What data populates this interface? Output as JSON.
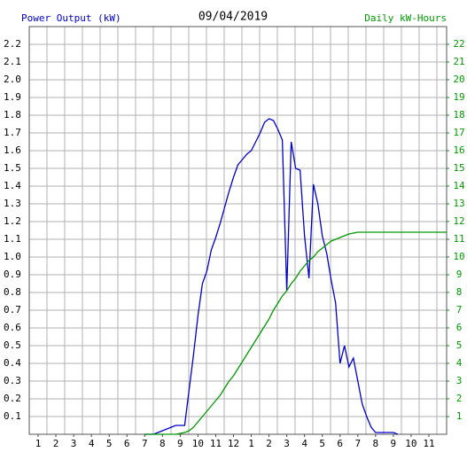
{
  "chart_data": {
    "type": "line",
    "title": "09/04/2019",
    "ylabel": "Power Output (kW)",
    "y2label": "Daily kW-Hours",
    "x": [
      7,
      7.25,
      7.5,
      7.75,
      8,
      8.25,
      8.5,
      8.75,
      9,
      9.25,
      9.5,
      9.75,
      10,
      10.25,
      10.5,
      10.75,
      11,
      11.25,
      11.5,
      11.75,
      12,
      12.25,
      12.5,
      12.75,
      13,
      13.25,
      13.5,
      13.75,
      14,
      14.25,
      14.5,
      14.75,
      15,
      15.25,
      15.5,
      15.75,
      16,
      16.25,
      16.5,
      16.75,
      17,
      17.25,
      17.5,
      17.75,
      18,
      18.25,
      18.5,
      18.75,
      19,
      19.25,
      19.5,
      19.75,
      20,
      20.25,
      20.5,
      20.75,
      21,
      21.25,
      21.5,
      21.75,
      22,
      22.25,
      22.5,
      22.75,
      23,
      23.25,
      23.5,
      23.75,
      24
    ],
    "series": [
      {
        "name": "Power Output (kW)",
        "color": "#0000cc",
        "axis": "y",
        "values": [
          0,
          0,
          0,
          0.01,
          0.02,
          0.03,
          0.04,
          0.05,
          0.05,
          0.05,
          0.25,
          0.45,
          0.67,
          0.85,
          0.92,
          1.04,
          1.11,
          1.19,
          1.28,
          1.37,
          1.45,
          1.52,
          1.55,
          1.58,
          1.6,
          1.65,
          1.7,
          1.76,
          1.78,
          1.77,
          1.72,
          1.66,
          0.81,
          1.65,
          1.5,
          1.49,
          1.12,
          0.88,
          1.41,
          1.3,
          1.12,
          1.02,
          0.87,
          0.74,
          0.4,
          0.5,
          0.38,
          0.43,
          0.3,
          0.17,
          0.1,
          0.04,
          0.01,
          0.01,
          0.01,
          0.01,
          0.01,
          0,
          null,
          null,
          null,
          null,
          null,
          null,
          null,
          null,
          null,
          null,
          null
        ]
      },
      {
        "name": "Daily kW-Hours",
        "color": "#009900",
        "axis": "y2",
        "values": [
          0,
          0,
          0,
          0,
          0,
          0,
          0,
          0,
          0.05,
          0.1,
          0.2,
          0.4,
          0.7,
          1.0,
          1.3,
          1.6,
          1.9,
          2.2,
          2.6,
          3.0,
          3.3,
          3.7,
          4.1,
          4.5,
          4.9,
          5.3,
          5.7,
          6.1,
          6.5,
          7.0,
          7.4,
          7.8,
          8.1,
          8.5,
          8.8,
          9.2,
          9.5,
          9.8,
          10.0,
          10.3,
          10.5,
          10.7,
          10.9,
          11.0,
          11.1,
          11.2,
          11.3,
          11.35,
          11.4,
          11.4,
          11.4,
          11.4,
          11.4,
          11.4,
          11.4,
          11.4,
          11.4,
          11.4,
          11.4,
          11.4,
          11.4,
          11.4,
          11.4,
          11.4,
          11.4,
          11.4,
          11.4,
          11.4,
          11.4
        ]
      }
    ],
    "xlim": [
      0.5,
      24
    ],
    "xticks": [
      1,
      2,
      3,
      4,
      5,
      6,
      7,
      8,
      9,
      10,
      11,
      12,
      {
        "value": 13,
        "label": "1"
      },
      {
        "value": 14,
        "label": "2"
      },
      {
        "value": 15,
        "label": "3"
      },
      {
        "value": 16,
        "label": "4"
      },
      {
        "value": 17,
        "label": "5"
      },
      {
        "value": 18,
        "label": "6"
      },
      {
        "value": 19,
        "label": "7"
      },
      {
        "value": 20,
        "label": "8"
      },
      {
        "value": 21,
        "label": "9"
      },
      {
        "value": 22,
        "label": "10"
      },
      {
        "value": 23,
        "label": "11"
      }
    ],
    "ylim": [
      0,
      2.3
    ],
    "yticks": [
      0.1,
      0.2,
      0.3,
      0.4,
      0.5,
      0.6,
      0.7,
      0.8,
      0.9,
      {
        "value": 1,
        "label": "1.0"
      },
      1.1,
      1.2,
      1.3,
      1.4,
      1.5,
      1.6,
      1.7,
      1.8,
      1.9,
      {
        "value": 2,
        "label": "2.0"
      },
      2.1,
      2.2
    ],
    "y2lim": [
      0,
      23
    ],
    "y2ticks": [
      1,
      2,
      3,
      4,
      5,
      6,
      7,
      8,
      9,
      10,
      11,
      12,
      13,
      14,
      15,
      16,
      17,
      18,
      19,
      20,
      21,
      22
    ],
    "grid": true
  }
}
